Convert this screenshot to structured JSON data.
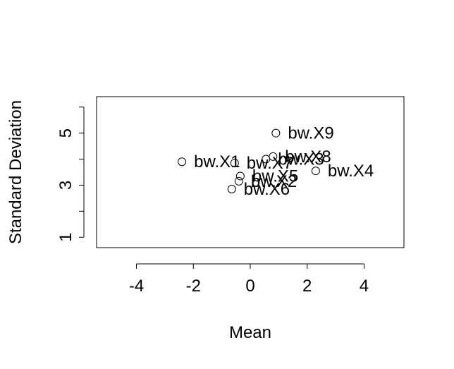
{
  "chart_data": {
    "type": "scatter",
    "title": "",
    "xlabel": "Mean",
    "ylabel": "Standard Deviation",
    "xlim": [
      -5.4,
      5.4
    ],
    "ylim": [
      0.6,
      6.4
    ],
    "x_ticks": [
      -4,
      -2,
      0,
      2,
      4
    ],
    "y_ticks": [
      1,
      2,
      3,
      4,
      5,
      6
    ],
    "y_tick_labels": [
      "1",
      "",
      "3",
      "",
      "5",
      ""
    ],
    "grid": false,
    "legend": "none",
    "marker": "open-circle",
    "points": [
      {
        "label": "bw.X1",
        "x": -2.4,
        "y": 3.9
      },
      {
        "label": "bw.X2",
        "x": -0.4,
        "y": 3.15
      },
      {
        "label": "bw.X3",
        "x": 0.55,
        "y": 4.0
      },
      {
        "label": "bw.X4",
        "x": 2.3,
        "y": 3.55
      },
      {
        "label": "bw.X5",
        "x": -0.35,
        "y": 3.35
      },
      {
        "label": "bw.X6",
        "x": -0.65,
        "y": 2.85
      },
      {
        "label": "bw.X7",
        "x": -0.55,
        "y": 3.85
      },
      {
        "label": "bw.X8",
        "x": 0.8,
        "y": 4.1
      },
      {
        "label": "bw.X9",
        "x": 0.9,
        "y": 5.0
      }
    ]
  }
}
